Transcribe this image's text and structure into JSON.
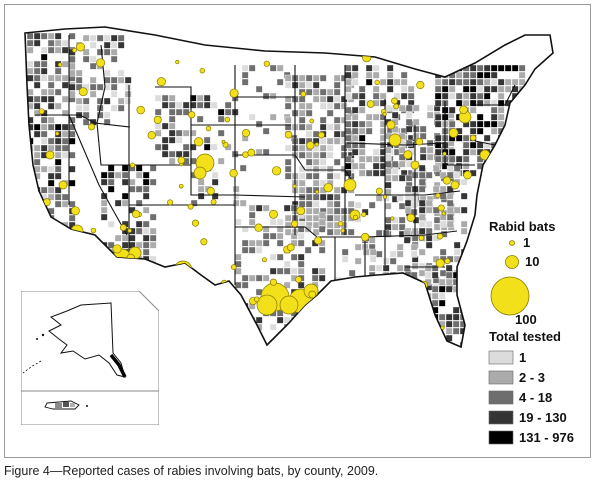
{
  "caption": "Figure 4—Reported cases of rabies involving bats, by county, 2009.",
  "legend": {
    "rabid_title": "Rabid bats",
    "bubble_sizes": [
      {
        "label": "1",
        "value": 1
      },
      {
        "label": "10",
        "value": 10
      },
      {
        "label": "100",
        "value": 100
      }
    ],
    "tested_title": "Total tested",
    "classes": [
      {
        "label": "1",
        "color": "#dcdcdc"
      },
      {
        "label": "2 - 3",
        "color": "#ababab"
      },
      {
        "label": "4 - 18",
        "color": "#6e6e6e"
      },
      {
        "label": "19 - 130",
        "color": "#353535"
      },
      {
        "label": "131 - 976",
        "color": "#000000"
      }
    ]
  },
  "colors": {
    "bubble_fill": "#f2e01a",
    "bubble_stroke": "#8a7a00",
    "state_line": "#111111",
    "county_fill": "#ffffff"
  }
}
